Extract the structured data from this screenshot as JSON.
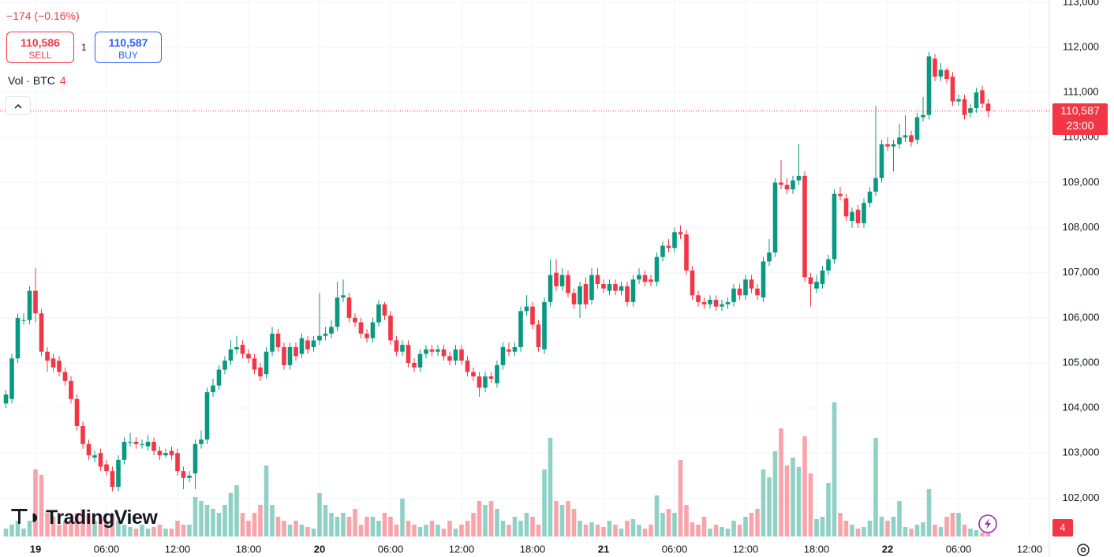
{
  "header": {
    "change": "−174 (−0.16%)",
    "sell_price": "110,586",
    "sell_label": "SELL",
    "quantity": "1",
    "buy_price": "110,587",
    "buy_label": "BUY",
    "volume_label": "Vol · BTC",
    "volume_value": "4",
    "logo": "TradingView"
  },
  "chart_data": {
    "type": "candlestick",
    "ylim": [
      101150,
      113050
    ],
    "yticks": [
      {
        "value": 102000,
        "label": "102,000"
      },
      {
        "value": 103000,
        "label": "103,000"
      },
      {
        "value": 104000,
        "label": "104,000"
      },
      {
        "value": 105000,
        "label": "105,000"
      },
      {
        "value": 106000,
        "label": "106,000"
      },
      {
        "value": 107000,
        "label": "107,000"
      },
      {
        "value": 108000,
        "label": "108,000"
      },
      {
        "value": 109000,
        "label": "109,000"
      },
      {
        "value": 110000,
        "label": "110,000"
      },
      {
        "value": 111000,
        "label": "111,000"
      },
      {
        "value": 112000,
        "label": "112,000"
      },
      {
        "value": 113000,
        "label": "113,000"
      }
    ],
    "xticks": [
      {
        "value": 5,
        "label": "19"
      },
      {
        "value": 17,
        "label": "06:00"
      },
      {
        "value": 29,
        "label": "12:00"
      },
      {
        "value": 41,
        "label": "18:00"
      },
      {
        "value": 53,
        "label": "20"
      },
      {
        "value": 65,
        "label": "06:00"
      },
      {
        "value": 77,
        "label": "12:00"
      },
      {
        "value": 89,
        "label": "18:00"
      },
      {
        "value": 101,
        "label": "21"
      },
      {
        "value": 113,
        "label": "06:00"
      },
      {
        "value": 125,
        "label": "12:00"
      },
      {
        "value": 137,
        "label": "18:00"
      },
      {
        "value": 149,
        "label": "22"
      },
      {
        "value": 161,
        "label": "06:00"
      },
      {
        "value": 173,
        "label": "12:00"
      }
    ],
    "grid": true,
    "up_color": "#089981",
    "down_color": "#f23645",
    "open": [
      104100,
      104200,
      105100,
      105950,
      105950,
      106600,
      106100,
      105250,
      105100,
      105050,
      104800,
      104600,
      104200,
      103600,
      103200,
      102900,
      103000,
      102750,
      102600,
      102250,
      102850,
      103250,
      103250,
      103200,
      103150,
      103250,
      103050,
      102950,
      103050,
      103000,
      102600,
      102450,
      102550,
      103200,
      103300,
      104350,
      104500,
      104850,
      105050,
      105300,
      105400,
      105200,
      105100,
      104900,
      104750,
      105250,
      105650,
      105350,
      104950,
      105350,
      105200,
      105500,
      105350,
      105500,
      105600,
      105650,
      105800,
      106450,
      106450,
      106000,
      105900,
      105650,
      105550,
      105900,
      106300,
      106050,
      105500,
      105250,
      105400,
      105000,
      104900,
      105200,
      105300,
      105250,
      105300,
      105150,
      105050,
      105300,
      105050,
      104800,
      104700,
      104450,
      104700,
      104550,
      104950,
      105300,
      105250,
      105350,
      106150,
      106250,
      105850,
      105300,
      106350,
      107000,
      106700,
      106950,
      106550,
      106300,
      106750,
      106400,
      106950,
      106750,
      106600,
      106750,
      106600,
      106700,
      106350,
      106850,
      106950,
      106850,
      106800,
      107350,
      107600,
      107550,
      107900,
      107850,
      107050,
      106500,
      106350,
      106300,
      106400,
      106250,
      106300,
      106350,
      106650,
      106500,
      106850,
      106650,
      106450,
      107250,
      107450,
      109000,
      108950,
      108850,
      109050,
      109150,
      106900,
      106650,
      106750,
      107050,
      107300,
      108750,
      108650,
      108150,
      108400,
      108100,
      108550,
      108800,
      109100,
      109850,
      109800,
      109850,
      110000,
      110050,
      109950,
      110450,
      110500,
      111750,
      111350,
      111500,
      111350,
      110800,
      110850,
      110550,
      110650,
      111050,
      110750
    ],
    "high": [
      104400,
      105200,
      106100,
      106100,
      106700,
      107100,
      106200,
      105350,
      105200,
      105150,
      104900,
      104700,
      104300,
      103700,
      103300,
      103050,
      103100,
      102850,
      102700,
      102950,
      103350,
      103450,
      103350,
      103300,
      103400,
      103350,
      103150,
      103100,
      103150,
      103100,
      102700,
      102600,
      103300,
      103500,
      104450,
      104650,
      104950,
      105150,
      105500,
      105600,
      105500,
      105300,
      105200,
      105000,
      105350,
      105800,
      105750,
      105450,
      105450,
      105450,
      105650,
      105600,
      105600,
      106550,
      105800,
      105950,
      106800,
      106850,
      106550,
      106100,
      106000,
      105750,
      106000,
      106400,
      106350,
      106150,
      105600,
      105500,
      105500,
      105100,
      105300,
      105400,
      105400,
      105400,
      105400,
      105250,
      105400,
      105400,
      105150,
      104900,
      104800,
      104800,
      104800,
      105050,
      105450,
      105450,
      105450,
      106250,
      106500,
      106350,
      105950,
      106450,
      107300,
      107300,
      107100,
      107050,
      106650,
      106800,
      106900,
      107100,
      107100,
      106850,
      106850,
      106850,
      106800,
      106800,
      106950,
      107100,
      107050,
      106950,
      107450,
      107700,
      107750,
      108000,
      108050,
      107950,
      107150,
      106600,
      106450,
      106500,
      106500,
      106400,
      106450,
      106750,
      106750,
      106950,
      106950,
      106750,
      107350,
      107750,
      109100,
      109500,
      109100,
      109150,
      109850,
      109250,
      107000,
      106950,
      107150,
      107400,
      108850,
      108900,
      108750,
      108450,
      108500,
      108650,
      108900,
      110700,
      109950,
      110000,
      109950,
      110300,
      110500,
      110150,
      110550,
      110900,
      111900,
      111850,
      111650,
      111550,
      111450,
      110950,
      110950,
      110750,
      111100,
      111150,
      110850
    ],
    "low": [
      104000,
      104100,
      105000,
      105850,
      105850,
      105900,
      105150,
      104800,
      104800,
      104700,
      104500,
      104100,
      103500,
      103100,
      102850,
      102800,
      102600,
      102500,
      102150,
      102150,
      102750,
      103150,
      103100,
      103100,
      103050,
      102950,
      102850,
      102900,
      102850,
      102500,
      102200,
      102350,
      102200,
      103100,
      103200,
      104250,
      104400,
      104750,
      104950,
      105200,
      105100,
      105000,
      104750,
      104600,
      104650,
      105150,
      105250,
      104850,
      104850,
      105050,
      105100,
      105200,
      105250,
      105400,
      105500,
      105550,
      105700,
      106350,
      105900,
      105800,
      105550,
      105450,
      105450,
      105800,
      105950,
      105400,
      105150,
      105150,
      104900,
      104800,
      104800,
      105100,
      105150,
      105150,
      105050,
      104950,
      104950,
      104950,
      104700,
      104600,
      104250,
      104350,
      104550,
      104450,
      104850,
      105150,
      105150,
      105250,
      106050,
      105750,
      105250,
      105200,
      106250,
      106600,
      106600,
      106450,
      106200,
      106000,
      106200,
      106300,
      106650,
      106550,
      106500,
      106500,
      106500,
      106250,
      106250,
      106750,
      106700,
      106700,
      106700,
      107250,
      107450,
      107450,
      107750,
      106950,
      106400,
      106250,
      106200,
      106200,
      106150,
      106150,
      106200,
      106250,
      106400,
      106400,
      106550,
      106400,
      106350,
      107150,
      107350,
      108850,
      108750,
      108750,
      108950,
      106800,
      106250,
      106550,
      106650,
      106950,
      107200,
      108600,
      108150,
      108000,
      108000,
      108000,
      108450,
      108700,
      109000,
      109700,
      109250,
      109750,
      109900,
      109800,
      109850,
      110350,
      110400,
      111250,
      111250,
      111200,
      110700,
      110700,
      110400,
      110450,
      110550,
      110650,
      110450
    ],
    "close": [
      104300,
      105100,
      106000,
      105950,
      106600,
      106100,
      105250,
      105050,
      104900,
      104800,
      104600,
      104200,
      103600,
      103200,
      102950,
      102950,
      102700,
      102600,
      102250,
      102850,
      103250,
      103250,
      103200,
      103200,
      103250,
      103050,
      102950,
      103000,
      102950,
      102600,
      102450,
      102500,
      103200,
      103300,
      104350,
      104500,
      104850,
      105050,
      105300,
      105350,
      105200,
      105100,
      104850,
      104700,
      105250,
      105650,
      105350,
      104950,
      105350,
      105150,
      105550,
      105300,
      105500,
      105600,
      105650,
      105800,
      106450,
      106500,
      106000,
      105900,
      105650,
      105550,
      105900,
      106300,
      106050,
      105500,
      105250,
      105400,
      105000,
      104900,
      105200,
      105300,
      105250,
      105300,
      105150,
      105050,
      105300,
      105050,
      104800,
      104700,
      104450,
      104700,
      104650,
      104950,
      105350,
      105250,
      105350,
      106150,
      106250,
      105850,
      105350,
      106350,
      106950,
      106700,
      106950,
      106550,
      106300,
      106700,
      106300,
      106950,
      106750,
      106650,
      106750,
      106600,
      106700,
      106350,
      106850,
      106950,
      106800,
      106800,
      107350,
      107600,
      107550,
      107900,
      107850,
      107050,
      106500,
      106350,
      106300,
      106400,
      106250,
      106300,
      106350,
      106650,
      106500,
      106850,
      106650,
      106500,
      107250,
      107450,
      109000,
      108950,
      108850,
      109050,
      109150,
      106900,
      106750,
      106800,
      107050,
      107300,
      108750,
      108700,
      108250,
      108350,
      108100,
      108550,
      108800,
      109100,
      109850,
      109800,
      109850,
      110000,
      110050,
      109900,
      110450,
      110500,
      111800,
      111350,
      111500,
      111300,
      110800,
      110850,
      110500,
      110650,
      111000,
      110750,
      110587
    ],
    "volume": [
      10,
      15,
      20,
      10,
      20,
      85,
      78,
      30,
      25,
      15,
      20,
      25,
      30,
      35,
      30,
      20,
      25,
      20,
      28,
      20,
      15,
      12,
      10,
      15,
      10,
      12,
      15,
      10,
      10,
      20,
      15,
      15,
      50,
      45,
      40,
      35,
      30,
      40,
      55,
      65,
      30,
      20,
      30,
      40,
      90,
      40,
      25,
      20,
      15,
      20,
      15,
      12,
      10,
      55,
      40,
      30,
      25,
      30,
      25,
      35,
      15,
      25,
      25,
      20,
      30,
      25,
      15,
      48,
      20,
      15,
      12,
      15,
      20,
      15,
      10,
      20,
      10,
      15,
      20,
      30,
      45,
      40,
      45,
      35,
      20,
      15,
      25,
      20,
      30,
      25,
      15,
      85,
      125,
      45,
      40,
      45,
      35,
      20,
      15,
      18,
      15,
      12,
      20,
      15,
      10,
      20,
      22,
      15,
      10,
      15,
      52,
      30,
      35,
      30,
      97,
      40,
      18,
      15,
      25,
      10,
      15,
      12,
      10,
      20,
      15,
      25,
      30,
      35,
      85,
      75,
      108,
      137,
      90,
      100,
      88,
      127,
      80,
      22,
      25,
      68,
      170,
      30,
      20,
      15,
      10,
      12,
      20,
      125,
      25,
      20,
      25,
      45,
      12,
      10,
      15,
      18,
      60,
      15,
      12,
      25,
      30,
      30,
      15,
      10,
      8,
      5,
      4
    ],
    "last_price": {
      "value": 110587,
      "label": "110,587"
    },
    "countdown": "23:00",
    "volume_badge": "4"
  }
}
